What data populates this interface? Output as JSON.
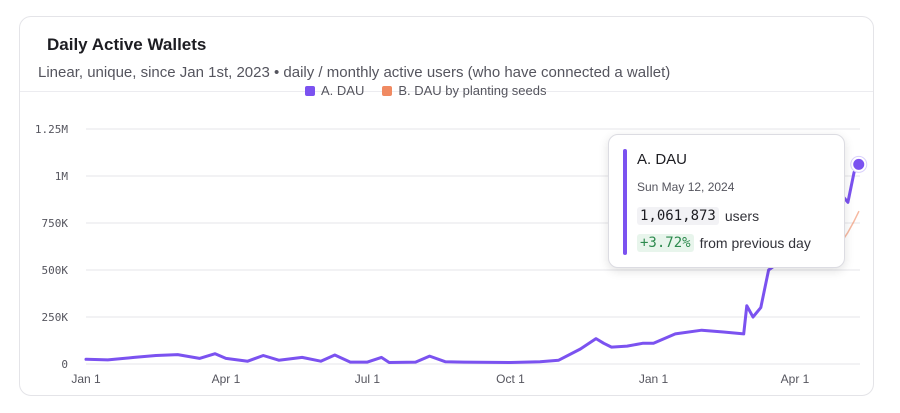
{
  "card": {
    "title": "Daily Active Wallets",
    "subtitle": "Linear, unique, since Jan 1st, 2023 • daily / monthly active users (who have connected a wallet)"
  },
  "colors": {
    "series_a": "#7b52f0",
    "series_b": "#f08a62",
    "gridline": "#e6e6ea"
  },
  "tooltip": {
    "series": "A. DAU",
    "date": "Sun May 12, 2024",
    "value": "1,061,873",
    "value_unit": "users",
    "change": "+3.72%",
    "change_text": "from previous day"
  },
  "chart_data": {
    "type": "line",
    "title": "Daily Active Wallets",
    "subtitle": "Linear, unique, since Jan 1st, 2023 • daily / monthly active users (who have connected a wallet)",
    "xlabel": "",
    "ylabel": "",
    "grid": true,
    "legend_position": "top-center",
    "ylim": [
      0,
      1250000
    ],
    "xlim": [
      "2023-01-01",
      "2024-05-12"
    ],
    "yticks": [
      {
        "value": 0,
        "label": "0"
      },
      {
        "value": 250000,
        "label": "250K"
      },
      {
        "value": 500000,
        "label": "500K"
      },
      {
        "value": 750000,
        "label": "750K"
      },
      {
        "value": 1000000,
        "label": "1M"
      },
      {
        "value": 1250000,
        "label": "1.25M"
      }
    ],
    "xticks": [
      {
        "value": "2023-01-01",
        "label": "Jan 1"
      },
      {
        "value": "2023-04-01",
        "label": "Apr 1"
      },
      {
        "value": "2023-07-01",
        "label": "Jul 1"
      },
      {
        "value": "2023-10-01",
        "label": "Oct 1"
      },
      {
        "value": "2024-01-01",
        "label": "Jan 1"
      },
      {
        "value": "2024-04-01",
        "label": "Apr 1"
      }
    ],
    "series": [
      {
        "name": "A. DAU",
        "color": "#7b52f0",
        "points": [
          [
            "2023-01-01",
            25000
          ],
          [
            "2023-01-15",
            22000
          ],
          [
            "2023-02-01",
            35000
          ],
          [
            "2023-02-15",
            45000
          ],
          [
            "2023-03-01",
            50000
          ],
          [
            "2023-03-15",
            30000
          ],
          [
            "2023-03-25",
            55000
          ],
          [
            "2023-04-01",
            30000
          ],
          [
            "2023-04-15",
            15000
          ],
          [
            "2023-04-25",
            45000
          ],
          [
            "2023-05-05",
            20000
          ],
          [
            "2023-05-20",
            35000
          ],
          [
            "2023-06-01",
            15000
          ],
          [
            "2023-06-10",
            48000
          ],
          [
            "2023-06-20",
            10000
          ],
          [
            "2023-07-01",
            10000
          ],
          [
            "2023-07-10",
            35000
          ],
          [
            "2023-07-15",
            8000
          ],
          [
            "2023-08-01",
            10000
          ],
          [
            "2023-08-10",
            42000
          ],
          [
            "2023-08-20",
            12000
          ],
          [
            "2023-09-01",
            10000
          ],
          [
            "2023-10-01",
            8000
          ],
          [
            "2023-10-20",
            12000
          ],
          [
            "2023-11-01",
            20000
          ],
          [
            "2023-11-15",
            80000
          ],
          [
            "2023-11-25",
            135000
          ],
          [
            "2023-11-30",
            110000
          ],
          [
            "2023-12-05",
            90000
          ],
          [
            "2023-12-15",
            95000
          ],
          [
            "2023-12-25",
            110000
          ],
          [
            "2024-01-01",
            110000
          ],
          [
            "2024-01-15",
            160000
          ],
          [
            "2024-02-01",
            180000
          ],
          [
            "2024-02-15",
            170000
          ],
          [
            "2024-02-28",
            160000
          ],
          [
            "2024-03-01",
            310000
          ],
          [
            "2024-03-05",
            250000
          ],
          [
            "2024-03-10",
            300000
          ],
          [
            "2024-03-15",
            500000
          ],
          [
            "2024-03-25",
            560000
          ],
          [
            "2024-04-01",
            620000
          ],
          [
            "2024-04-10",
            700000
          ],
          [
            "2024-04-18",
            750000
          ],
          [
            "2024-04-25",
            780000
          ],
          [
            "2024-05-01",
            900000
          ],
          [
            "2024-05-05",
            860000
          ],
          [
            "2024-05-09",
            1020000
          ],
          [
            "2024-05-12",
            1061873
          ]
        ]
      },
      {
        "name": "B. DAU by planting seeds",
        "color": "#f08a62",
        "points": [
          [
            "2024-04-25",
            580000
          ],
          [
            "2024-05-01",
            650000
          ],
          [
            "2024-05-05",
            700000
          ],
          [
            "2024-05-09",
            760000
          ],
          [
            "2024-05-12",
            810000
          ]
        ]
      }
    ]
  }
}
